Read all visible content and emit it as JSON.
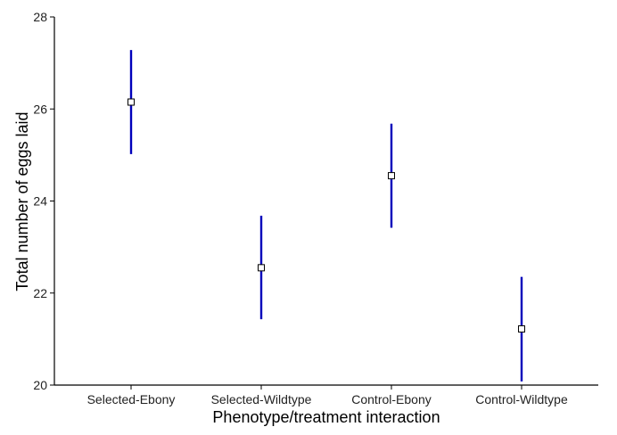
{
  "chart_data": {
    "type": "scatter",
    "xlabel": "Phenotype/treatment interaction",
    "ylabel": "Total number of eggs laid",
    "categories": [
      "Selected-Ebony",
      "Selected-Wildtype",
      "Control-Ebony",
      "Control-Wildtype"
    ],
    "values": [
      26.15,
      22.55,
      24.55,
      21.22
    ],
    "error_lower": [
      25.02,
      21.43,
      23.42,
      20.08
    ],
    "error_upper": [
      27.28,
      23.68,
      25.68,
      22.35
    ],
    "ylim": [
      20,
      28
    ],
    "yticks": [
      20,
      22,
      24,
      26,
      28
    ],
    "grid": false,
    "colors": {
      "error_bar": "#0000bb",
      "marker_edge": "#000000",
      "marker_fill": "#ffffff",
      "axis": "#000000"
    }
  }
}
